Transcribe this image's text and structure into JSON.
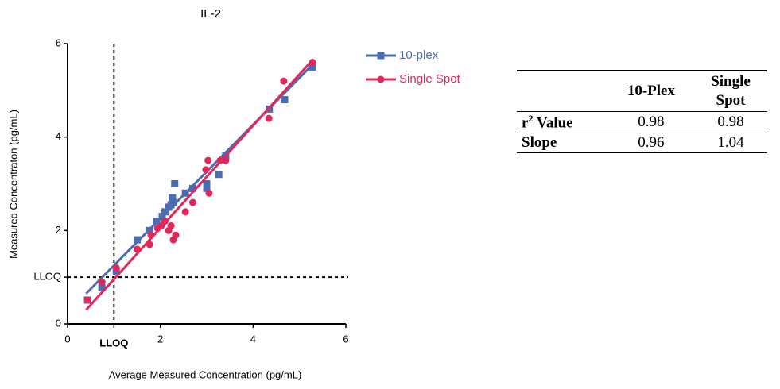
{
  "chart_data": {
    "type": "scatter",
    "title": "IL-2",
    "x_label": "Average Measured Concentration  (pg/mL)",
    "y_label": "Measured Concentraton  (pg/mL)",
    "xlim": [
      0,
      6
    ],
    "ylim": [
      0,
      6
    ],
    "xticks": [
      0,
      {
        "value": 1,
        "label": "LLOQ"
      },
      2,
      4,
      6
    ],
    "yticks": [
      0,
      {
        "value": 1,
        "label": "LLOQ"
      },
      2,
      4,
      6
    ],
    "lloq": 1,
    "series": [
      {
        "name": "10-plex",
        "color": "#4a6cb3",
        "marker": "square",
        "x": [
          0.43,
          0.74,
          1.05,
          1.5,
          1.77,
          1.92,
          2.04,
          2.1,
          2.18,
          2.23,
          2.26,
          2.28,
          2.31,
          2.54,
          2.7,
          3.0,
          3.0,
          3.26,
          3.41,
          4.35,
          4.68,
          5.28
        ],
        "values": [
          0.51,
          0.78,
          1.12,
          1.8,
          2.0,
          2.2,
          2.3,
          2.4,
          2.5,
          2.55,
          2.7,
          2.6,
          3.0,
          2.8,
          2.9,
          3.0,
          2.9,
          3.2,
          3.6,
          4.6,
          4.8,
          5.5
        ],
        "fit": {
          "x": [
            0.4,
            5.28
          ],
          "y": [
            0.65,
            5.55
          ]
        }
      },
      {
        "name": "Single Spot",
        "color": "#e2275a",
        "marker": "circle",
        "x": [
          0.43,
          0.74,
          1.05,
          1.5,
          1.77,
          1.8,
          1.94,
          2.02,
          2.1,
          2.18,
          2.23,
          2.28,
          2.33,
          2.54,
          2.7,
          2.98,
          3.03,
          3.05,
          3.29,
          3.41,
          4.34,
          4.66,
          5.28
        ],
        "values": [
          0.51,
          0.9,
          1.2,
          1.6,
          1.7,
          1.9,
          2.05,
          2.1,
          2.2,
          2.0,
          2.1,
          1.8,
          1.9,
          2.4,
          2.6,
          3.3,
          3.5,
          2.8,
          3.5,
          3.5,
          4.4,
          5.2,
          5.6
        ],
        "fit": {
          "x": [
            0.4,
            5.28
          ],
          "y": [
            0.3,
            5.65
          ]
        }
      }
    ]
  },
  "table": {
    "columns": [
      "10-Plex",
      "Single Spot"
    ],
    "rows": [
      {
        "label": "r",
        "label_sup": "2",
        "label_rest": "Value",
        "values": [
          0.98,
          0.98
        ]
      },
      {
        "label": "Slope",
        "values": [
          0.96,
          1.04
        ]
      }
    ]
  }
}
